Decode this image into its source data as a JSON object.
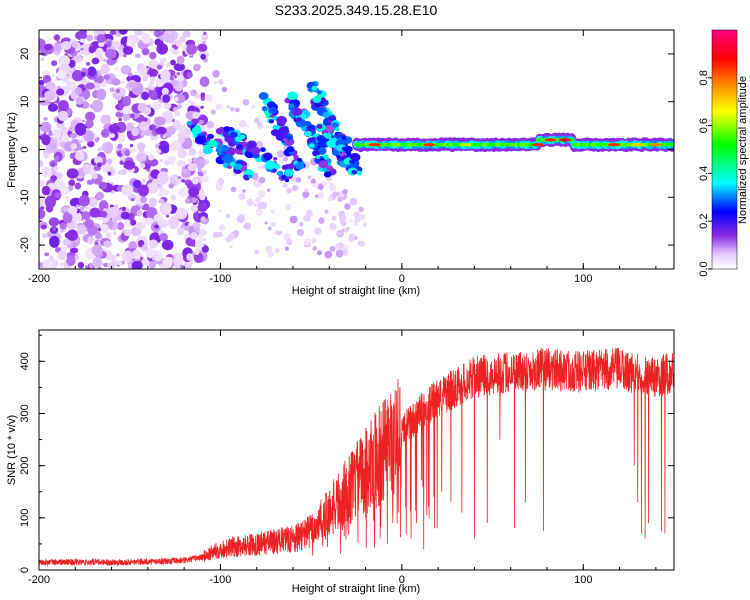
{
  "title": "S233.2025.349.15.28.E10",
  "chart_data": [
    {
      "type": "heatmap",
      "title": "S233.2025.349.15.28.E10",
      "xlabel": "Height of straight line (km)",
      "ylabel": "Frequency (Hz)",
      "xlim": [
        -200,
        150
      ],
      "ylim": [
        -25,
        25
      ],
      "x_ticks": [
        -200,
        -100,
        0,
        100
      ],
      "y_ticks": [
        -20,
        -10,
        0,
        10,
        20
      ],
      "colorbar": {
        "label": "Normalized spectral amplitude",
        "range": [
          0,
          1
        ],
        "ticks": [
          0.0,
          0.2,
          0.4,
          0.6,
          0.8
        ],
        "tick_labels": [
          "0.0",
          "0.2",
          "0.4",
          "0.6",
          "0.8"
        ],
        "colors": [
          "#ffffff",
          "#e6ccff",
          "#8a2be2",
          "#0000ff",
          "#00ffff",
          "#00ff00",
          "#ffff00",
          "#ff8000",
          "#ff0000",
          "#ff0080"
        ]
      },
      "features": {
        "noise_region_x": [
          -200,
          -110
        ],
        "noise_region_y": [
          -25,
          25
        ],
        "transition_region_x": [
          -120,
          -25
        ],
        "carrier_line": {
          "x_start": -25,
          "x_end": 150,
          "frequency_hz": 1
        }
      }
    },
    {
      "type": "line",
      "xlabel": "Height of straight line (km)",
      "ylabel": "SNR (10 * v/v)",
      "xlim": [
        -200,
        150
      ],
      "ylim": [
        0,
        460
      ],
      "x_ticks": [
        -200,
        -100,
        0,
        100
      ],
      "y_ticks": [
        0,
        100,
        200,
        300,
        400
      ],
      "series": [
        {
          "name": "SNR",
          "color": "#ee2222",
          "control_points": {
            "x": [
              -200,
              -150,
              -120,
              -110,
              -100,
              -80,
              -60,
              -50,
              -40,
              -30,
              -20,
              -10,
              0,
              10,
              20,
              30,
              40,
              50,
              60,
              80,
              100,
              120,
              130,
              140,
              150
            ],
            "y": [
              15,
              15,
              18,
              25,
              40,
              50,
              60,
              75,
              110,
              150,
              190,
              230,
              265,
              300,
              330,
              350,
              370,
              375,
              380,
              385,
              380,
              385,
              375,
              370,
              380
            ]
          },
          "dropouts": [
            {
              "x": -20,
              "y": 100
            },
            {
              "x": -15,
              "y": 80
            },
            {
              "x": -12,
              "y": 60
            },
            {
              "x": -8,
              "y": 50
            },
            {
              "x": -5,
              "y": 90
            },
            {
              "x": -2,
              "y": 110
            },
            {
              "x": 2,
              "y": 120
            },
            {
              "x": 5,
              "y": 60
            },
            {
              "x": 8,
              "y": 90
            },
            {
              "x": 12,
              "y": 40
            },
            {
              "x": 15,
              "y": 100
            },
            {
              "x": 18,
              "y": 80
            },
            {
              "x": 22,
              "y": 150
            },
            {
              "x": 27,
              "y": 130
            },
            {
              "x": 33,
              "y": 110
            },
            {
              "x": 40,
              "y": 60
            },
            {
              "x": 47,
              "y": 90
            },
            {
              "x": 54,
              "y": 250
            },
            {
              "x": 62,
              "y": 80
            },
            {
              "x": 68,
              "y": 130
            },
            {
              "x": 78,
              "y": 75
            },
            {
              "x": 128,
              "y": 200
            },
            {
              "x": 130,
              "y": 130
            },
            {
              "x": 132,
              "y": 70
            },
            {
              "x": 134,
              "y": 60
            },
            {
              "x": 136,
              "y": 90
            },
            {
              "x": 143,
              "y": 75
            },
            {
              "x": 145,
              "y": 70
            }
          ]
        }
      ]
    }
  ]
}
